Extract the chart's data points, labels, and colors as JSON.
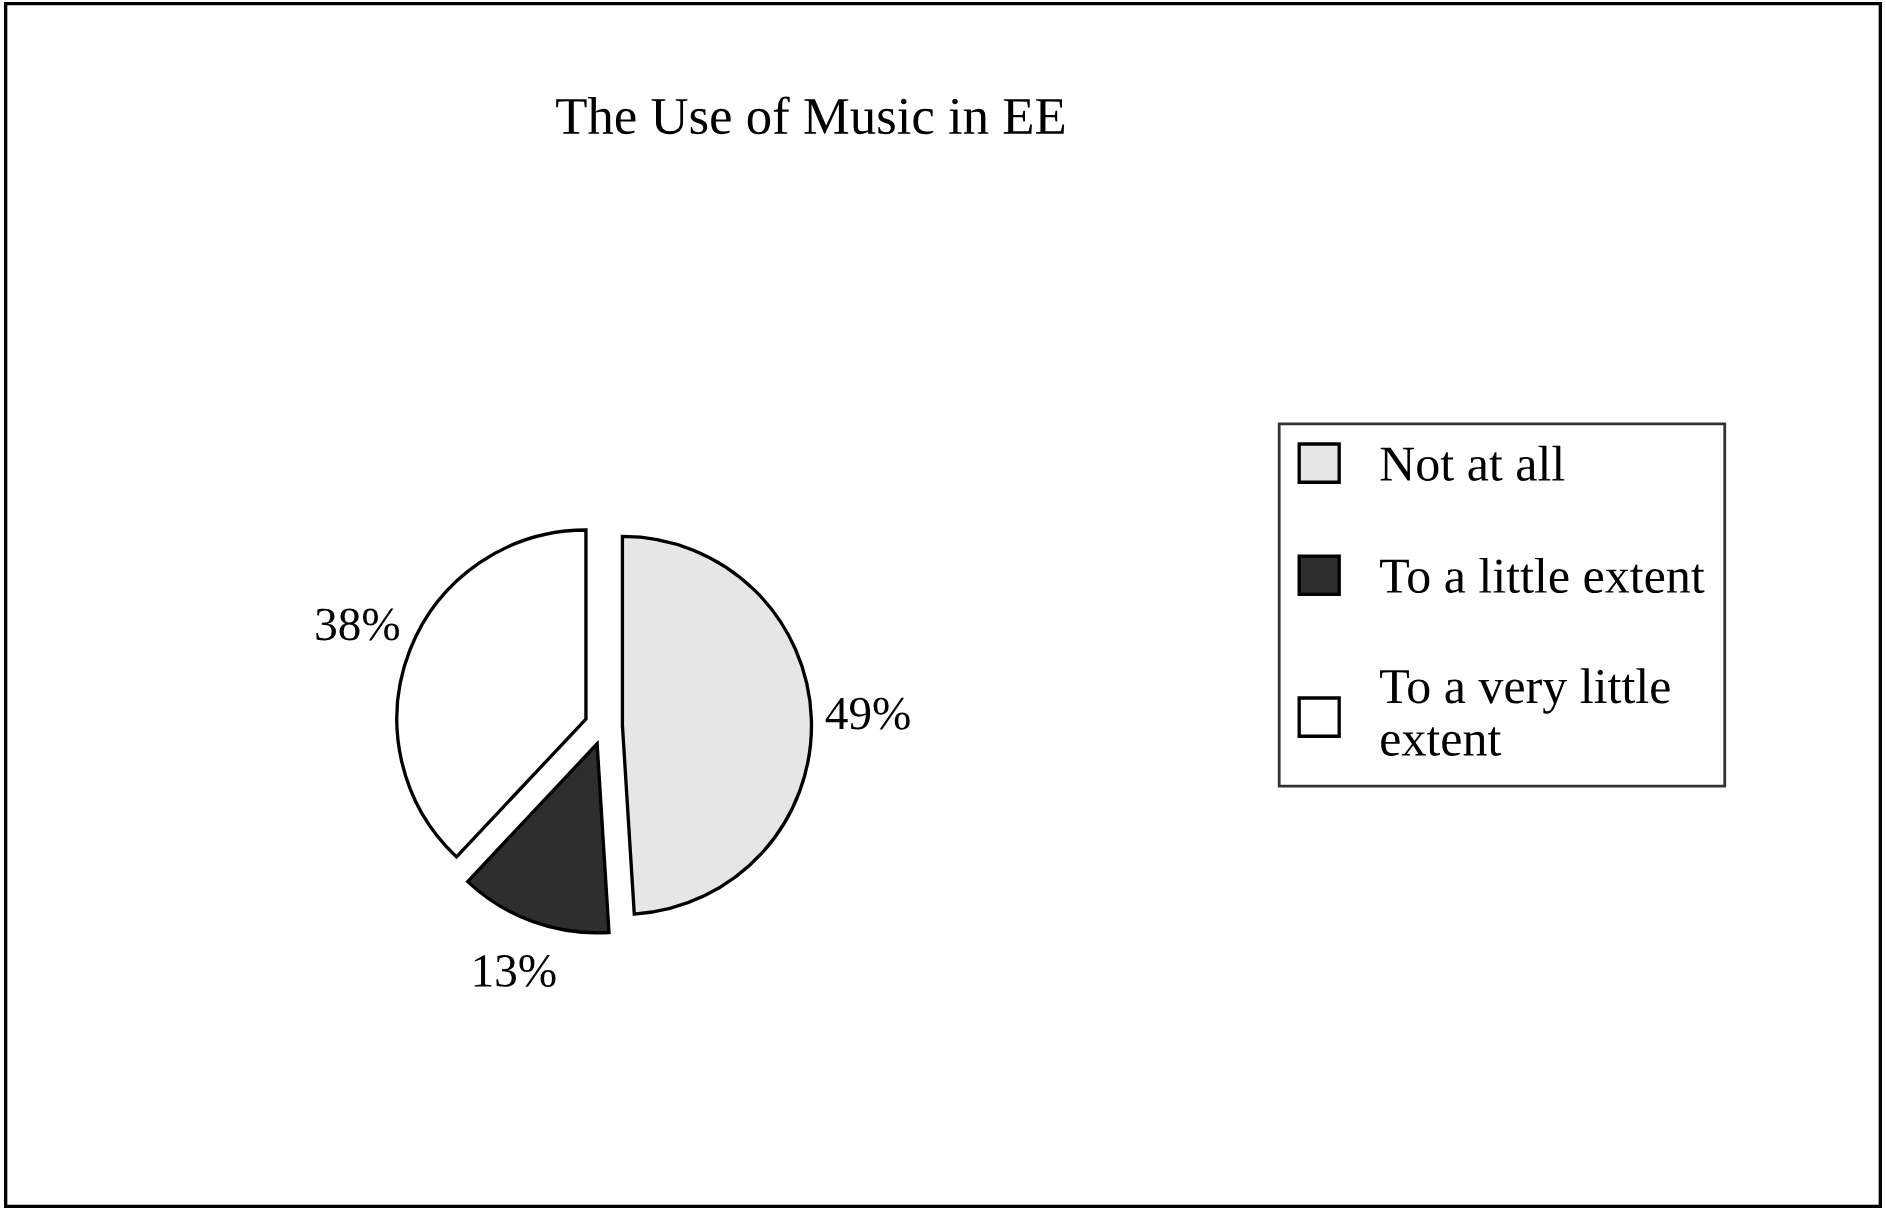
{
  "chart_data": {
    "type": "pie",
    "title": "The Use of Music in EE",
    "categories": [
      "Not at all",
      "To a little extent",
      "To a very little extent"
    ],
    "values": [
      49,
      13,
      38
    ],
    "colors": [
      "#e6e6e6",
      "#2e2e2e",
      "#ffffff"
    ],
    "value_labels": [
      "49%",
      "13%",
      "38%"
    ],
    "legend": "right"
  }
}
